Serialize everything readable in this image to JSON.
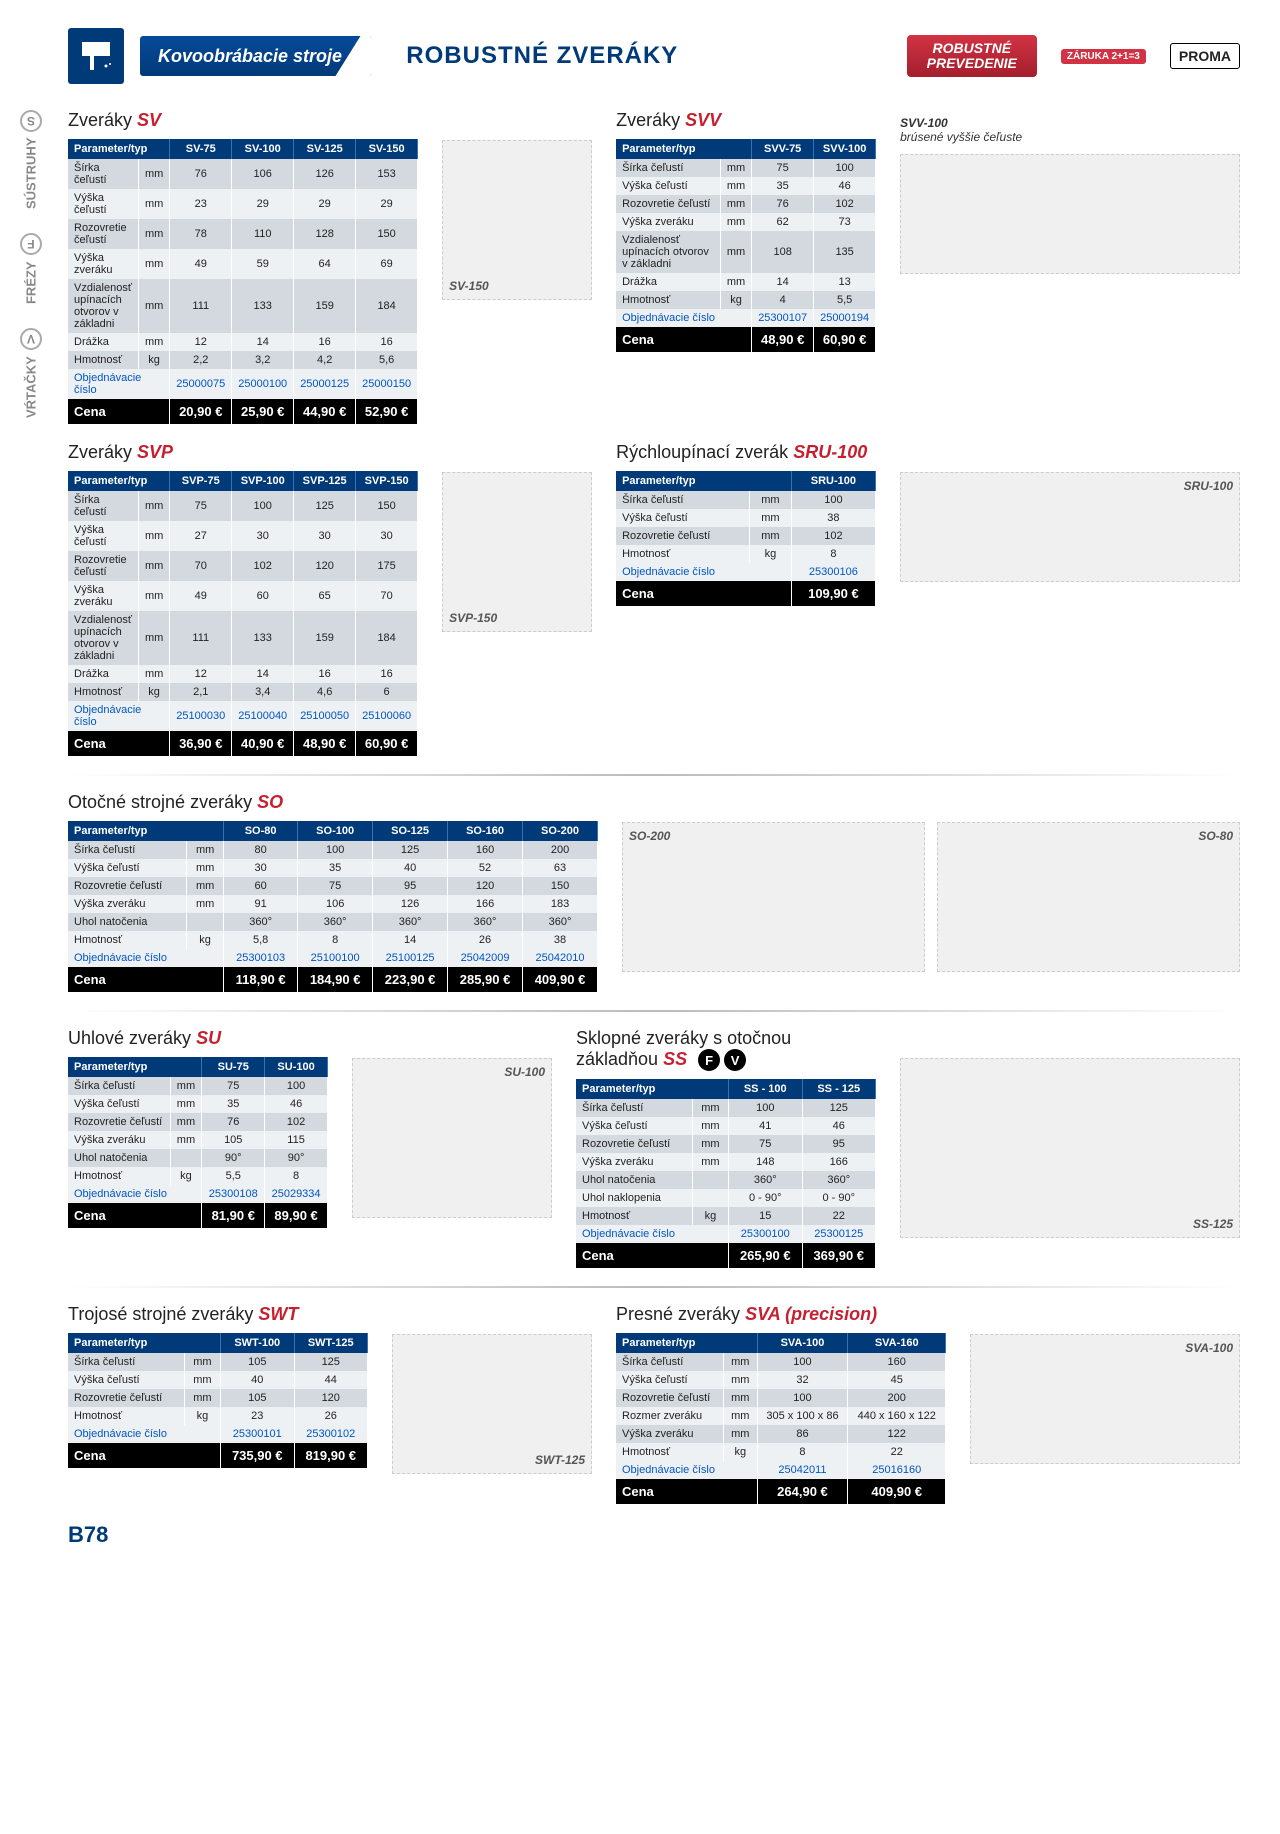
{
  "header": {
    "category": "Kovoobrábacie stroje",
    "title": "ROBUSTNÉ ZVERÁKY",
    "badge_robust_l1": "ROBUSTNÉ",
    "badge_robust_l2": "PREVEDENIE",
    "warranty": "ZÁRUKA 2+1=3",
    "brand": "PROMA"
  },
  "sidetabs": [
    {
      "code": "V",
      "label": "VŔTAČKY"
    },
    {
      "code": "F",
      "label": "FRÉZY"
    },
    {
      "code": "S",
      "label": "SÚSTRUHY"
    }
  ],
  "pageno": "B78",
  "sections": {
    "sv": {
      "title_pre": "Zveráky",
      "title_model": "SV",
      "img": "SV-150",
      "cols": [
        "SV-75",
        "SV-100",
        "SV-125",
        "SV-150"
      ],
      "rows": [
        {
          "p": "Šírka čeľustí",
          "u": "mm",
          "v": [
            "76",
            "106",
            "126",
            "153"
          ]
        },
        {
          "p": "Výška čeľustí",
          "u": "mm",
          "v": [
            "23",
            "29",
            "29",
            "29"
          ]
        },
        {
          "p": "Rozovretie čeľustí",
          "u": "mm",
          "v": [
            "78",
            "110",
            "128",
            "150"
          ]
        },
        {
          "p": "Výška zveráku",
          "u": "mm",
          "v": [
            "49",
            "59",
            "64",
            "69"
          ]
        },
        {
          "p": "Vzdialenosť upínacích otvorov v základni",
          "u": "mm",
          "v": [
            "111",
            "133",
            "159",
            "184"
          ]
        },
        {
          "p": "Drážka",
          "u": "mm",
          "v": [
            "12",
            "14",
            "16",
            "16"
          ]
        },
        {
          "p": "Hmotnosť",
          "u": "kg",
          "v": [
            "2,2",
            "3,2",
            "4,2",
            "5,6"
          ]
        }
      ],
      "order": [
        "25000075",
        "25000100",
        "25000125",
        "25000150"
      ],
      "price": [
        "20,90 €",
        "25,90 €",
        "44,90 €",
        "52,90 €"
      ]
    },
    "svv": {
      "title_pre": "Zveráky",
      "title_model": "SVV",
      "img": "",
      "note_title": "SVV-100",
      "note": "brúsené vyššie čeľuste",
      "cols": [
        "SVV-75",
        "SVV-100"
      ],
      "rows": [
        {
          "p": "Šírka čeľustí",
          "u": "mm",
          "v": [
            "75",
            "100"
          ]
        },
        {
          "p": "Výška čeľustí",
          "u": "mm",
          "v": [
            "35",
            "46"
          ]
        },
        {
          "p": "Rozovretie čeľustí",
          "u": "mm",
          "v": [
            "76",
            "102"
          ]
        },
        {
          "p": "Výška zveráku",
          "u": "mm",
          "v": [
            "62",
            "73"
          ]
        },
        {
          "p": "Vzdialenosť upínacích otvorov v základni",
          "u": "mm",
          "v": [
            "108",
            "135"
          ]
        },
        {
          "p": "Drážka",
          "u": "mm",
          "v": [
            "14",
            "13"
          ]
        },
        {
          "p": "Hmotnosť",
          "u": "kg",
          "v": [
            "4",
            "5,5"
          ]
        }
      ],
      "order": [
        "25300107",
        "25000194"
      ],
      "price": [
        "48,90 €",
        "60,90 €"
      ]
    },
    "svp": {
      "title_pre": "Zveráky",
      "title_model": "SVP",
      "img": "SVP-150",
      "cols": [
        "SVP-75",
        "SVP-100",
        "SVP-125",
        "SVP-150"
      ],
      "rows": [
        {
          "p": "Šírka čeľustí",
          "u": "mm",
          "v": [
            "75",
            "100",
            "125",
            "150"
          ]
        },
        {
          "p": "Výška čeľustí",
          "u": "mm",
          "v": [
            "27",
            "30",
            "30",
            "30"
          ]
        },
        {
          "p": "Rozovretie čeľustí",
          "u": "mm",
          "v": [
            "70",
            "102",
            "120",
            "175"
          ]
        },
        {
          "p": "Výška zveráku",
          "u": "mm",
          "v": [
            "49",
            "60",
            "65",
            "70"
          ]
        },
        {
          "p": "Vzdialenosť upínacích otvorov v základni",
          "u": "mm",
          "v": [
            "111",
            "133",
            "159",
            "184"
          ]
        },
        {
          "p": "Drážka",
          "u": "mm",
          "v": [
            "12",
            "14",
            "16",
            "16"
          ]
        },
        {
          "p": "Hmotnosť",
          "u": "kg",
          "v": [
            "2,1",
            "3,4",
            "4,6",
            "6"
          ]
        }
      ],
      "order": [
        "25100030",
        "25100040",
        "25100050",
        "25100060"
      ],
      "price": [
        "36,90 €",
        "40,90 €",
        "48,90 €",
        "60,90 €"
      ]
    },
    "sru": {
      "title_pre": "Rýchloupínací zverák",
      "title_model": "SRU-100",
      "img": "SRU-100",
      "cols": [
        "SRU-100"
      ],
      "rows": [
        {
          "p": "Šírka čeľustí",
          "u": "mm",
          "v": [
            "100"
          ]
        },
        {
          "p": "Výška čeľustí",
          "u": "mm",
          "v": [
            "38"
          ]
        },
        {
          "p": "Rozovretie čeľustí",
          "u": "mm",
          "v": [
            "102"
          ]
        },
        {
          "p": "Hmotnosť",
          "u": "kg",
          "v": [
            "8"
          ]
        }
      ],
      "order": [
        "25300106"
      ],
      "price": [
        "109,90 €"
      ]
    },
    "so": {
      "title_pre": "Otočné strojné zveráky",
      "title_model": "SO",
      "img1": "SO-200",
      "img2": "SO-80",
      "cols": [
        "SO-80",
        "SO-100",
        "SO-125",
        "SO-160",
        "SO-200"
      ],
      "rows": [
        {
          "p": "Šírka čeľustí",
          "u": "mm",
          "v": [
            "80",
            "100",
            "125",
            "160",
            "200"
          ]
        },
        {
          "p": "Výška čeľustí",
          "u": "mm",
          "v": [
            "30",
            "35",
            "40",
            "52",
            "63"
          ]
        },
        {
          "p": "Rozovretie čeľustí",
          "u": "mm",
          "v": [
            "60",
            "75",
            "95",
            "120",
            "150"
          ]
        },
        {
          "p": "Výška zveráku",
          "u": "mm",
          "v": [
            "91",
            "106",
            "126",
            "166",
            "183"
          ]
        },
        {
          "p": "Uhol natočenia",
          "u": "",
          "v": [
            "360°",
            "360°",
            "360°",
            "360°",
            "360°"
          ]
        },
        {
          "p": "Hmotnosť",
          "u": "kg",
          "v": [
            "5,8",
            "8",
            "14",
            "26",
            "38"
          ]
        }
      ],
      "order": [
        "25300103",
        "25100100",
        "25100125",
        "25042009",
        "25042010"
      ],
      "price": [
        "118,90 €",
        "184,90 €",
        "223,90 €",
        "285,90 €",
        "409,90 €"
      ]
    },
    "su": {
      "title_pre": "Uhlové zveráky",
      "title_model": "SU",
      "img": "SU-100",
      "cols": [
        "SU-75",
        "SU-100"
      ],
      "rows": [
        {
          "p": "Šírka čeľustí",
          "u": "mm",
          "v": [
            "75",
            "100"
          ]
        },
        {
          "p": "Výška čeľustí",
          "u": "mm",
          "v": [
            "35",
            "46"
          ]
        },
        {
          "p": "Rozovretie čeľustí",
          "u": "mm",
          "v": [
            "76",
            "102"
          ]
        },
        {
          "p": "Výška zveráku",
          "u": "mm",
          "v": [
            "105",
            "115"
          ]
        },
        {
          "p": "Uhol natočenia",
          "u": "",
          "v": [
            "90°",
            "90°"
          ]
        },
        {
          "p": "Hmotnosť",
          "u": "kg",
          "v": [
            "5,5",
            "8"
          ]
        }
      ],
      "order": [
        "25300108",
        "25029334"
      ],
      "price": [
        "81,90 €",
        "89,90 €"
      ]
    },
    "ss": {
      "title_pre": "Sklopné zveráky s otočnou základňou",
      "title_model": "SS",
      "img": "SS-125",
      "fv": true,
      "cols": [
        "SS - 100",
        "SS - 125"
      ],
      "rows": [
        {
          "p": "Šírka čeľustí",
          "u": "mm",
          "v": [
            "100",
            "125"
          ]
        },
        {
          "p": "Výška čeľustí",
          "u": "mm",
          "v": [
            "41",
            "46"
          ]
        },
        {
          "p": "Rozovretie čeľustí",
          "u": "mm",
          "v": [
            "75",
            "95"
          ]
        },
        {
          "p": "Výška zveráku",
          "u": "mm",
          "v": [
            "148",
            "166"
          ]
        },
        {
          "p": "Uhol natočenia",
          "u": "",
          "v": [
            "360°",
            "360°"
          ]
        },
        {
          "p": "Uhol naklopenia",
          "u": "",
          "v": [
            "0 - 90°",
            "0 - 90°"
          ]
        },
        {
          "p": "Hmotnosť",
          "u": "kg",
          "v": [
            "15",
            "22"
          ]
        }
      ],
      "order": [
        "25300100",
        "25300125"
      ],
      "price": [
        "265,90 €",
        "369,90 €"
      ]
    },
    "swt": {
      "title_pre": "Trojosé strojné zveráky",
      "title_model": "SWT",
      "img": "SWT-125",
      "cols": [
        "SWT-100",
        "SWT-125"
      ],
      "rows": [
        {
          "p": "Šírka čeľustí",
          "u": "mm",
          "v": [
            "105",
            "125"
          ]
        },
        {
          "p": "Výška čeľustí",
          "u": "mm",
          "v": [
            "40",
            "44"
          ]
        },
        {
          "p": "Rozovretie čeľustí",
          "u": "mm",
          "v": [
            "105",
            "120"
          ]
        },
        {
          "p": "Hmotnosť",
          "u": "kg",
          "v": [
            "23",
            "26"
          ]
        }
      ],
      "order": [
        "25300101",
        "25300102"
      ],
      "price": [
        "735,90 €",
        "819,90 €"
      ]
    },
    "sva": {
      "title_pre": "Presné zveráky",
      "title_model": "SVA (precision)",
      "img": "SVA-100",
      "cols": [
        "SVA-100",
        "SVA-160"
      ],
      "rows": [
        {
          "p": "Šírka čeľustí",
          "u": "mm",
          "v": [
            "100",
            "160"
          ]
        },
        {
          "p": "Výška čeľustí",
          "u": "mm",
          "v": [
            "32",
            "45"
          ]
        },
        {
          "p": "Rozovretie čeľustí",
          "u": "mm",
          "v": [
            "100",
            "200"
          ]
        },
        {
          "p": "Rozmer zveráku",
          "u": "mm",
          "v": [
            "305 x 100 x 86",
            "440 x 160 x 122"
          ]
        },
        {
          "p": "Výška zveráku",
          "u": "mm",
          "v": [
            "86",
            "122"
          ]
        },
        {
          "p": "Hmotnosť",
          "u": "kg",
          "v": [
            "8",
            "22"
          ]
        }
      ],
      "order": [
        "25042011",
        "25016160"
      ],
      "price": [
        "264,90 €",
        "409,90 €"
      ]
    }
  },
  "labels": {
    "param": "Parameter/typ",
    "order": "Objednávacie číslo",
    "price": "Cena"
  }
}
